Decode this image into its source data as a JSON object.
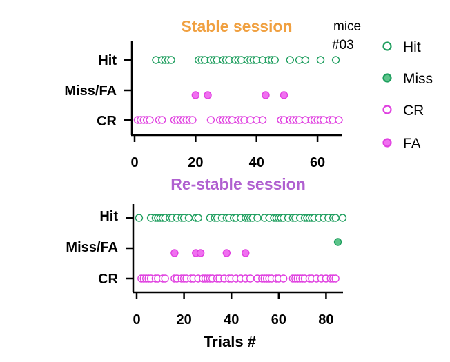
{
  "note": {
    "line1": "mice",
    "line2": "#03"
  },
  "legend": [
    {
      "label": "Hit",
      "color": "#1e9e5e",
      "filled": false
    },
    {
      "label": "Miss",
      "color": "#1e9e5e",
      "filled": true
    },
    {
      "label": "CR",
      "color": "#e040e0",
      "filled": false
    },
    {
      "label": "FA",
      "color": "#e040e0",
      "filled": true
    }
  ],
  "colors": {
    "stable_title": "#f0a040",
    "restable_title": "#b060d0",
    "hit": "#1e9e5e",
    "cr": "#e040e0",
    "fill_miss": "#5cc48a",
    "fill_fa": "#f070f0"
  },
  "chart_data": [
    {
      "type": "scatter",
      "title": "Stable session",
      "xlabel": "",
      "ylabel": "",
      "xlim": [
        0,
        67
      ],
      "xticks": [
        0,
        20,
        40,
        60
      ],
      "rows": [
        "Hit",
        "Miss/FA",
        "CR"
      ],
      "series": [
        {
          "name": "Hit",
          "row": "Hit",
          "x": [
            7,
            9,
            10,
            11,
            12,
            21,
            22,
            23,
            25,
            26,
            27,
            29,
            30,
            31,
            33,
            34,
            35,
            37,
            38,
            39,
            40,
            42,
            44,
            45,
            46,
            51,
            54,
            56,
            61,
            66
          ]
        },
        {
          "name": "Miss",
          "row": "Miss/FA",
          "x": []
        },
        {
          "name": "FA",
          "row": "Miss/FA",
          "x": [
            20,
            24,
            43,
            49
          ]
        },
        {
          "name": "CR",
          "row": "CR",
          "x": [
            1,
            2,
            3,
            4,
            5,
            8,
            9,
            13,
            14,
            15,
            16,
            17,
            18,
            19,
            25,
            28,
            29,
            30,
            31,
            32,
            34,
            35,
            36,
            38,
            40,
            42,
            48,
            49,
            51,
            52,
            53,
            54,
            56,
            58,
            59,
            60,
            61,
            62,
            64,
            65,
            67
          ]
        }
      ]
    },
    {
      "type": "scatter",
      "title": "Re-stable session",
      "xlabel": "Trials #",
      "ylabel": "",
      "xlim": [
        0,
        86
      ],
      "xticks": [
        0,
        20,
        40,
        60,
        80
      ],
      "rows": [
        "Hit",
        "Miss/FA",
        "CR"
      ],
      "series": [
        {
          "name": "Hit",
          "row": "Hit",
          "x": [
            1,
            6,
            8,
            9,
            10,
            11,
            12,
            14,
            15,
            17,
            19,
            20,
            22,
            25,
            26,
            31,
            33,
            34,
            36,
            38,
            39,
            41,
            42,
            44,
            46,
            47,
            48,
            49,
            51,
            54,
            56,
            58,
            59,
            60,
            61,
            62,
            64,
            66,
            67,
            69,
            71,
            72,
            73,
            74,
            75,
            77,
            79,
            81,
            83,
            84,
            87
          ]
        },
        {
          "name": "Miss",
          "row": "Miss/FA",
          "x": [
            85
          ]
        },
        {
          "name": "FA",
          "row": "Miss/FA",
          "x": [
            16,
            25,
            27,
            38,
            46
          ]
        },
        {
          "name": "CR",
          "row": "CR",
          "x": [
            2,
            3,
            4,
            5,
            6,
            8,
            9,
            11,
            12,
            16,
            17,
            19,
            20,
            21,
            23,
            24,
            26,
            28,
            29,
            30,
            31,
            32,
            34,
            35,
            37,
            39,
            40,
            42,
            44,
            46,
            48,
            51,
            53,
            54,
            55,
            56,
            57,
            59,
            60,
            62,
            66,
            67,
            68,
            69,
            70,
            71,
            73,
            74,
            76,
            78,
            80,
            82,
            83,
            84
          ]
        }
      ]
    }
  ]
}
